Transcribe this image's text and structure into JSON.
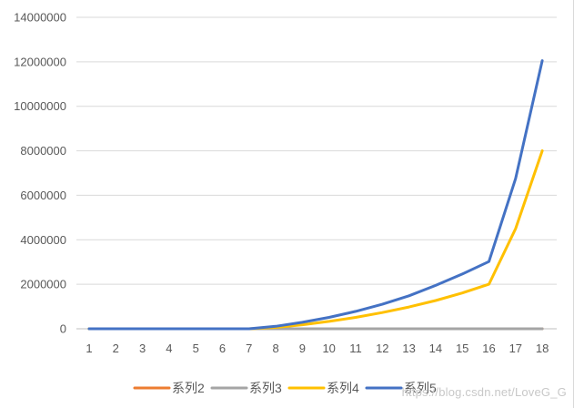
{
  "chart_data": {
    "type": "line",
    "title": "",
    "xlabel": "",
    "ylabel": "",
    "x": [
      1,
      2,
      3,
      4,
      5,
      6,
      7,
      8,
      9,
      10,
      11,
      12,
      13,
      14,
      15,
      16,
      17,
      18
    ],
    "ylim": [
      0,
      14000000
    ],
    "yticks": [
      0,
      2000000,
      4000000,
      6000000,
      8000000,
      10000000,
      12000000,
      14000000
    ],
    "grid": "horizontal",
    "legend": "bottom",
    "series": [
      {
        "name": "系列2",
        "color": "#ED7D31",
        "values": [
          0,
          0,
          0,
          0,
          0,
          0,
          0,
          0,
          0,
          0,
          0,
          0,
          0,
          0,
          0,
          0,
          0,
          0
        ]
      },
      {
        "name": "系列3",
        "color": "#A5A5A5",
        "values": [
          0,
          0,
          0,
          0,
          0,
          0,
          0,
          0,
          0,
          0,
          0,
          0,
          0,
          0,
          0,
          0,
          0,
          0
        ]
      },
      {
        "name": "系列4",
        "color": "#FFC000",
        "values": [
          0,
          0,
          0,
          0,
          0,
          0,
          0,
          60000,
          180000,
          330000,
          510000,
          730000,
          980000,
          1270000,
          1610000,
          2000000,
          4500000,
          8000000
        ]
      },
      {
        "name": "系列5",
        "color": "#4472C4",
        "values": [
          0,
          0,
          0,
          0,
          0,
          0,
          0,
          110000,
          290000,
          510000,
          780000,
          1100000,
          1480000,
          1950000,
          2460000,
          3020000,
          6750000,
          12050000
        ]
      }
    ]
  },
  "watermark": "https://blog.csdn.net/LoveG_G"
}
